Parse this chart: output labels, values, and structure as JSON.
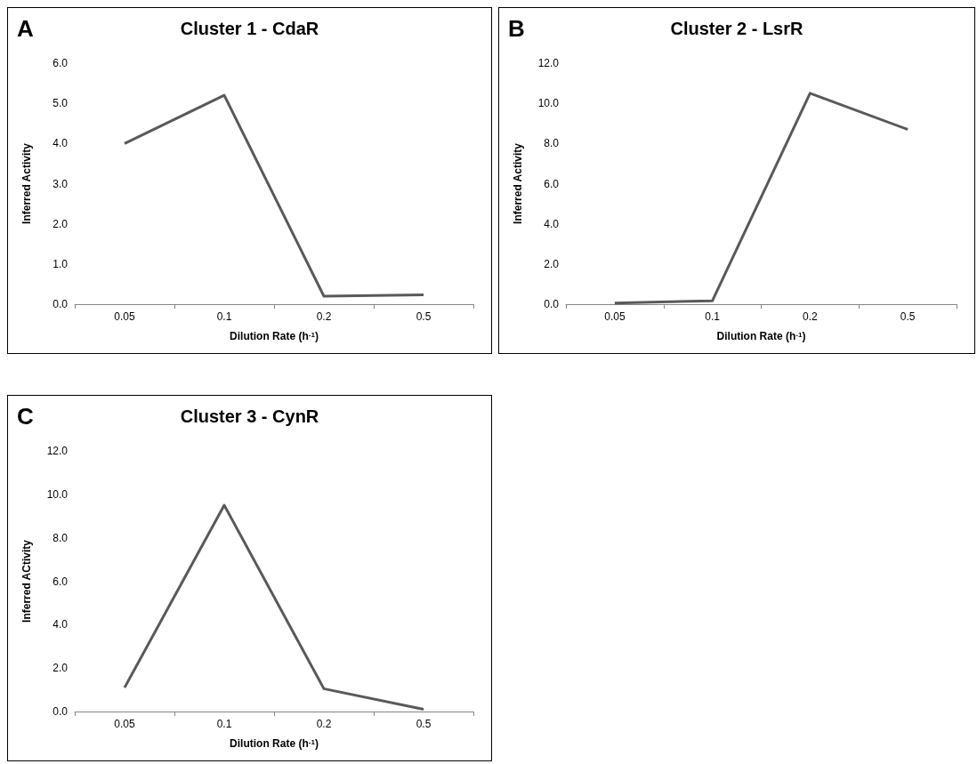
{
  "chart_data": [
    {
      "type": "line",
      "title": "Cluster 1 - CdaR",
      "xlabel": "Dilution Rate (h$^{-1}$)",
      "ylabel": "Inferred Activity",
      "annotations": [
        "A"
      ],
      "categories": [
        "0.05",
        "0.1",
        "0.2",
        "0.5"
      ],
      "values": [
        4.0,
        5.2,
        0.2,
        0.23
      ],
      "color": "#595959",
      "marker": "none",
      "ylim": [
        0,
        6
      ],
      "yticks": [
        {
          "value": 0,
          "label": "0.0"
        },
        {
          "value": 1,
          "label": "1.0"
        },
        {
          "value": 2,
          "label": "2.0"
        },
        {
          "value": 3,
          "label": "3.0"
        },
        {
          "value": 4,
          "label": "4.0"
        },
        {
          "value": 5,
          "label": "5.0"
        },
        {
          "value": 6,
          "label": "6.0"
        }
      ]
    },
    {
      "type": "line",
      "title": "Cluster 2 - LsrR",
      "xlabel": "Dilution Rate (h$^{-1}$)",
      "ylabel": "Inferred Activity",
      "annotations": [
        "B"
      ],
      "categories": [
        "0.05",
        "0.1",
        "0.2",
        "0.5"
      ],
      "values": [
        0.05,
        0.17,
        10.5,
        8.7
      ],
      "color": "#595959",
      "marker": "none",
      "ylim": [
        0,
        12
      ],
      "yticks": [
        {
          "value": 0,
          "label": "0.0"
        },
        {
          "value": 2,
          "label": "2.0"
        },
        {
          "value": 4,
          "label": "4.0"
        },
        {
          "value": 6,
          "label": "6.0"
        },
        {
          "value": 8,
          "label": "8.0"
        },
        {
          "value": 10,
          "label": "10.0"
        },
        {
          "value": 12,
          "label": "12.0"
        }
      ]
    },
    {
      "type": "line",
      "title": "Cluster 3 - CynR",
      "xlabel": "Dilution Rate (h$^{-1}$)",
      "ylabel": "Inferred ACtivity",
      "annotations": [
        "C"
      ],
      "categories": [
        "0.05",
        "0.1",
        "0.2",
        "0.5"
      ],
      "values": [
        1.1,
        9.5,
        1.05,
        0.1
      ],
      "color": "#595959",
      "marker": "none",
      "ylim": [
        0,
        12
      ],
      "yticks": [
        {
          "value": 0,
          "label": "0.0"
        },
        {
          "value": 2,
          "label": "2.0"
        },
        {
          "value": 4,
          "label": "4.0"
        },
        {
          "value": 6,
          "label": "6.0"
        },
        {
          "value": 8,
          "label": "8.0"
        },
        {
          "value": 10,
          "label": "10.0"
        },
        {
          "value": 12,
          "label": "12.0"
        }
      ]
    }
  ]
}
